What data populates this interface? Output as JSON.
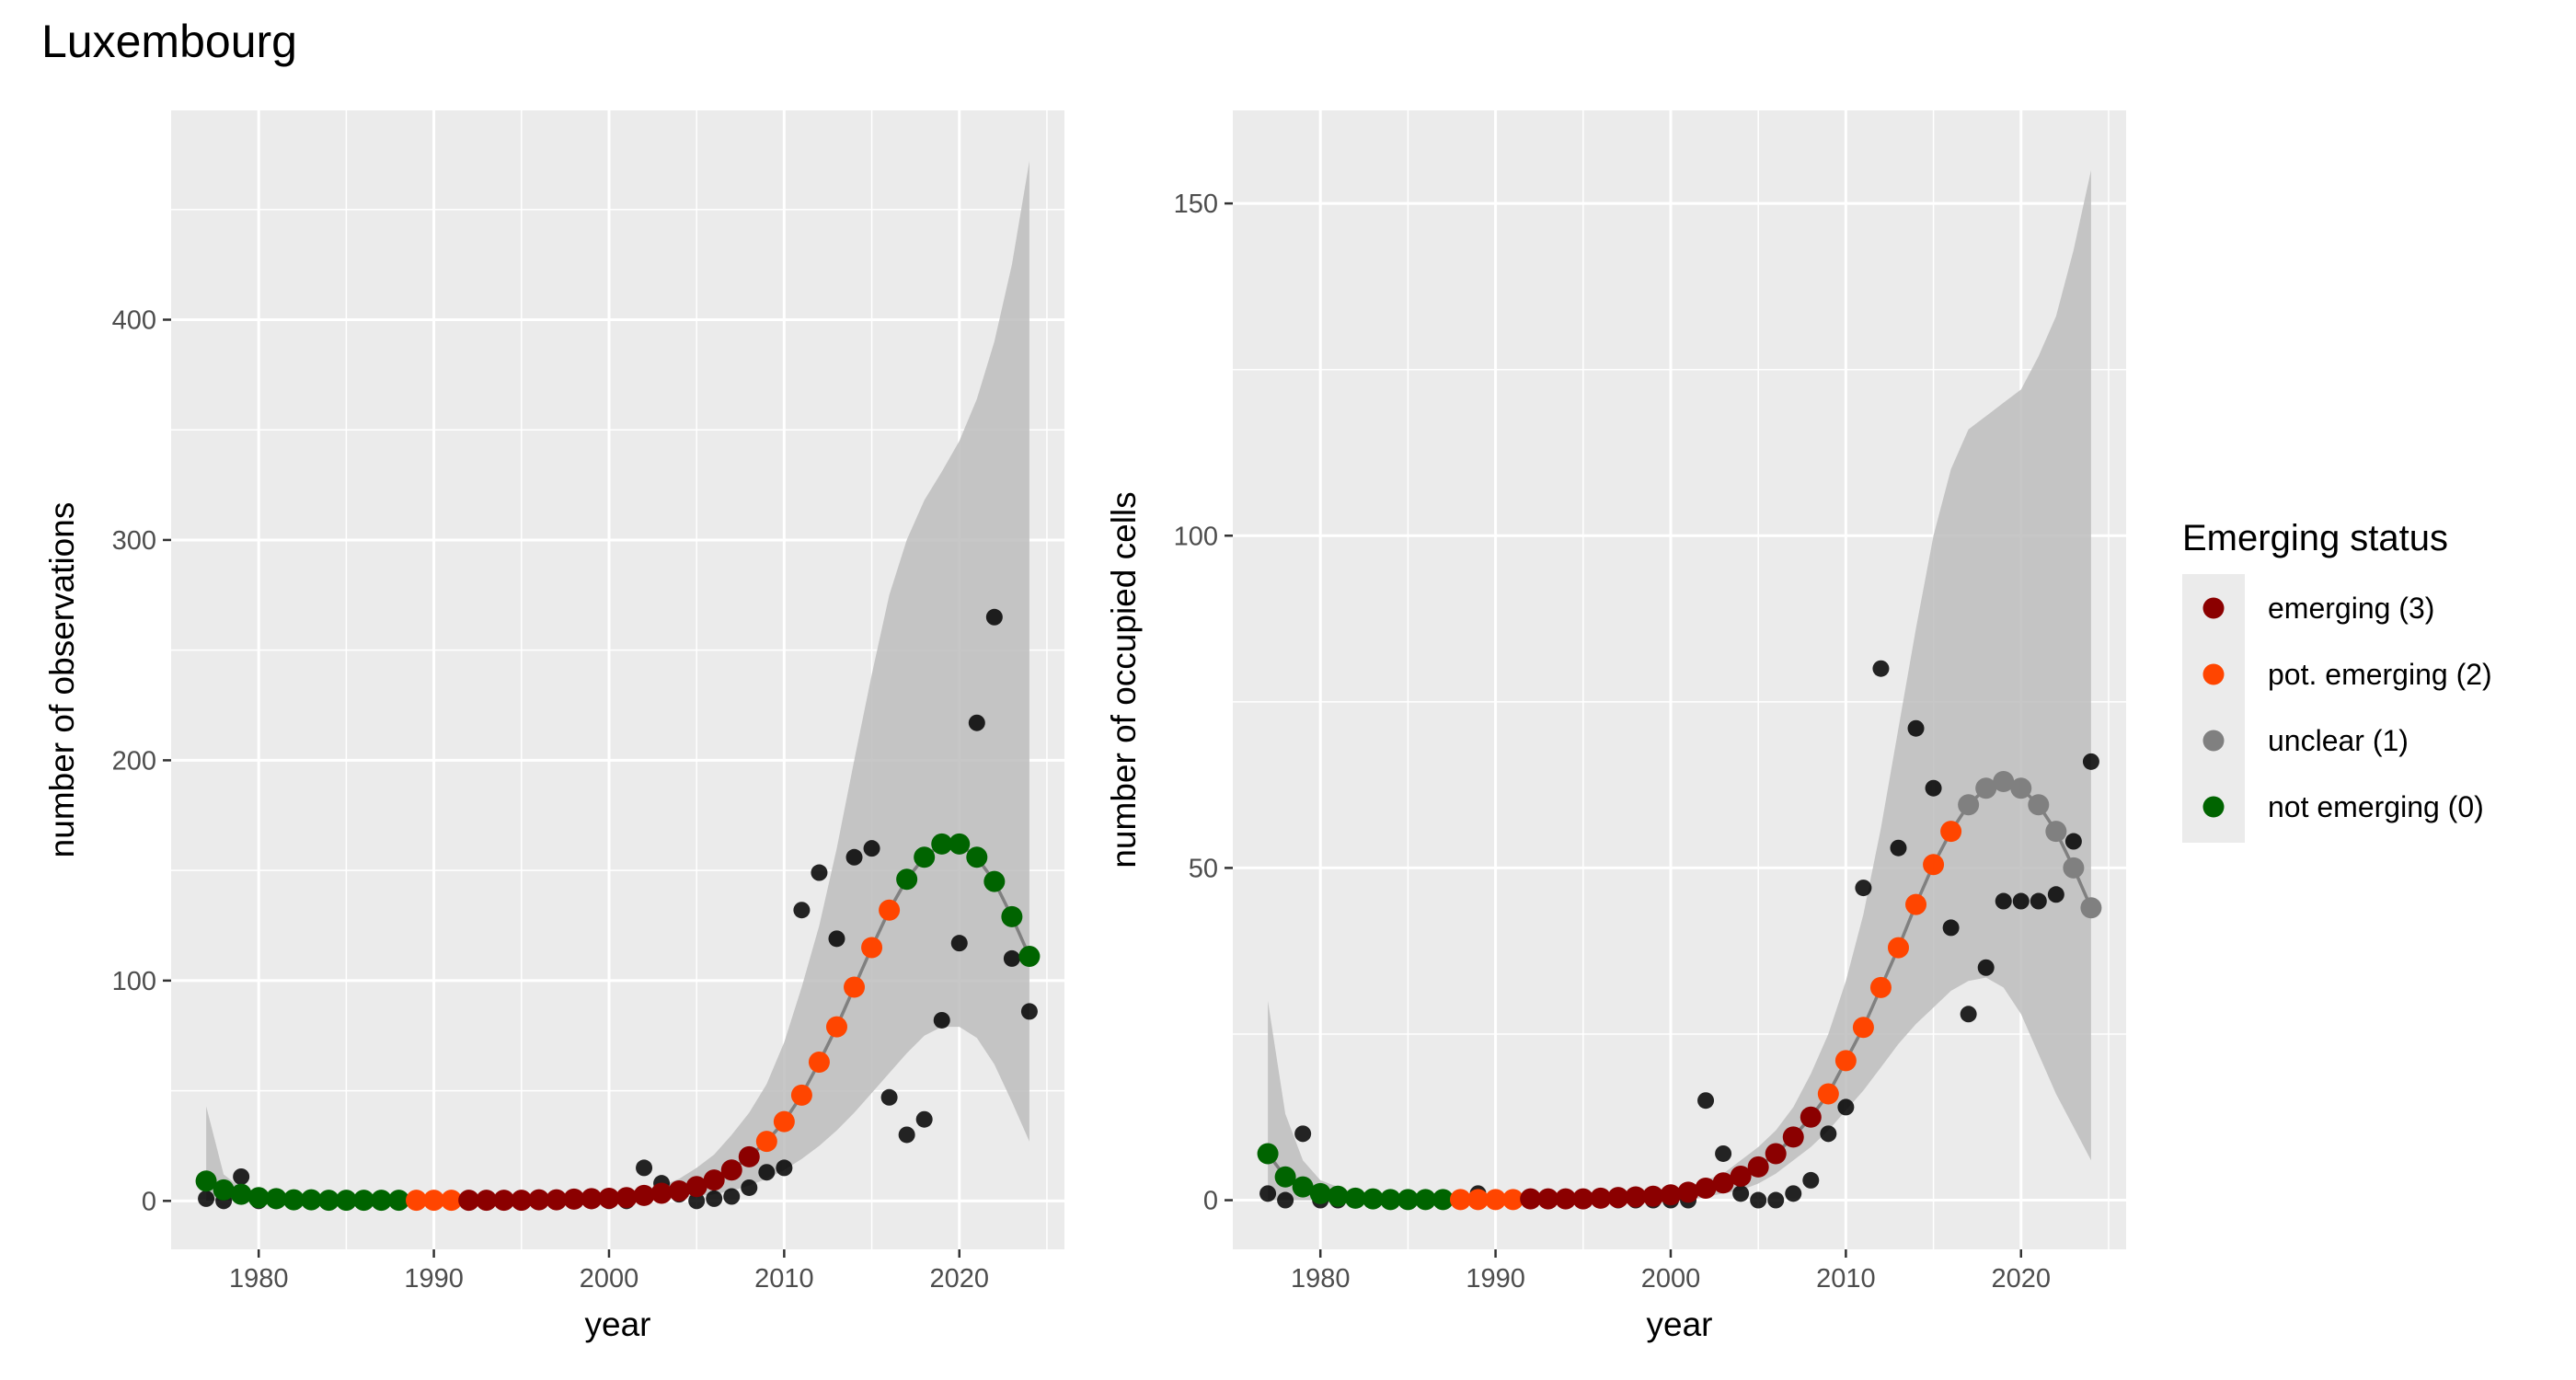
{
  "title": "Luxembourg",
  "legend": {
    "title": "Emerging status",
    "position": "right",
    "entries": [
      {
        "key": "3",
        "label": "emerging (3)",
        "color": "#8B0000"
      },
      {
        "key": "2",
        "label": "pot. emerging (2)",
        "color": "#FF4500"
      },
      {
        "key": "1",
        "label": "unclear (1)",
        "color": "#808080"
      },
      {
        "key": "0",
        "label": "not emerging (0)",
        "color": "#006400"
      }
    ]
  },
  "chart_data": [
    {
      "type": "scatter",
      "xlabel": "year",
      "ylabel": "number of observations",
      "xlim": [
        1975,
        2026
      ],
      "ylim": [
        -22,
        495
      ],
      "xticks": [
        1980,
        1990,
        2000,
        2010,
        2020
      ],
      "yticks": [
        0,
        100,
        200,
        300,
        400
      ],
      "grid": true,
      "observed": {
        "x": [
          1977,
          1978,
          1979,
          1980,
          1981,
          1982,
          1983,
          1984,
          1985,
          1986,
          1987,
          1988,
          1989,
          1990,
          1991,
          1992,
          1993,
          1994,
          1995,
          1996,
          1997,
          1998,
          1999,
          2000,
          2001,
          2002,
          2003,
          2004,
          2005,
          2006,
          2007,
          2008,
          2009,
          2010,
          2011,
          2012,
          2013,
          2014,
          2015,
          2016,
          2017,
          2018,
          2019,
          2020,
          2021,
          2022,
          2023,
          2024
        ],
        "y": [
          1,
          0,
          11,
          0,
          0,
          0,
          0,
          0,
          0,
          0,
          0,
          0,
          0,
          0,
          0,
          0,
          0,
          0,
          0,
          0,
          0,
          0,
          0,
          0,
          0,
          15,
          8,
          3,
          0,
          1,
          2,
          6,
          13,
          15,
          132,
          149,
          119,
          156,
          160,
          47,
          30,
          37,
          82,
          117,
          217,
          265,
          110,
          86
        ]
      },
      "fit": {
        "x": [
          1977,
          1978,
          1979,
          1980,
          1981,
          1982,
          1983,
          1984,
          1985,
          1986,
          1987,
          1988,
          1989,
          1990,
          1991,
          1992,
          1993,
          1994,
          1995,
          1996,
          1997,
          1998,
          1999,
          2000,
          2001,
          2002,
          2003,
          2004,
          2005,
          2006,
          2007,
          2008,
          2009,
          2010,
          2011,
          2012,
          2013,
          2014,
          2015,
          2016,
          2017,
          2018,
          2019,
          2020,
          2021,
          2022,
          2023,
          2024
        ],
        "y": [
          9,
          5,
          3,
          1.5,
          1,
          0.5,
          0.5,
          0.3,
          0.3,
          0.3,
          0.3,
          0.3,
          0.3,
          0.3,
          0.3,
          0.3,
          0.3,
          0.3,
          0.3,
          0.5,
          0.5,
          0.8,
          1,
          1.2,
          1.5,
          2.5,
          3.5,
          4.5,
          6.5,
          9.5,
          14,
          20,
          27,
          36,
          48,
          63,
          79,
          97,
          115,
          132,
          146,
          156,
          162,
          162,
          156,
          145,
          129,
          111
        ],
        "status": [
          "0",
          "0",
          "0",
          "0",
          "0",
          "0",
          "0",
          "0",
          "0",
          "0",
          "0",
          "0",
          "2",
          "2",
          "2",
          "3",
          "3",
          "3",
          "3",
          "3",
          "3",
          "3",
          "3",
          "3",
          "3",
          "3",
          "3",
          "3",
          "3",
          "3",
          "3",
          "3",
          "2",
          "2",
          "2",
          "2",
          "2",
          "2",
          "2",
          "2",
          "0",
          "0",
          "0",
          "0",
          "0",
          "0",
          "0",
          "0"
        ],
        "lower": [
          0,
          0,
          0,
          0,
          0,
          0,
          0,
          0,
          0,
          0,
          0,
          0,
          0,
          0,
          0,
          0,
          0,
          0,
          0,
          0,
          0,
          0,
          0,
          0,
          0,
          0.5,
          1,
          1.5,
          2,
          3,
          4.5,
          7,
          10,
          14,
          19,
          25,
          32,
          40,
          49,
          58,
          67,
          75,
          79,
          79,
          74,
          62,
          45,
          27
        ],
        "upper": [
          43,
          12,
          6,
          3,
          2,
          1,
          1,
          1,
          1,
          1,
          1,
          1,
          1,
          1,
          1,
          1,
          1,
          1,
          1,
          1,
          1,
          1.5,
          2,
          2.5,
          3,
          5,
          7,
          10,
          15,
          21,
          30,
          40,
          53,
          72,
          97,
          125,
          160,
          200,
          239,
          275,
          300,
          318,
          331,
          345,
          364,
          390,
          425,
          472
        ]
      }
    },
    {
      "type": "scatter",
      "xlabel": "year",
      "ylabel": "number of occupied cells",
      "xlim": [
        1975,
        2026
      ],
      "ylim": [
        -7.4,
        164
      ],
      "xticks": [
        1980,
        1990,
        2000,
        2010,
        2020
      ],
      "yticks": [
        0,
        50,
        100,
        150
      ],
      "grid": true,
      "observed": {
        "x": [
          1977,
          1978,
          1979,
          1980,
          1981,
          1982,
          1983,
          1984,
          1985,
          1986,
          1987,
          1988,
          1989,
          1990,
          1991,
          1992,
          1993,
          1994,
          1995,
          1996,
          1997,
          1998,
          1999,
          2000,
          2001,
          2002,
          2003,
          2004,
          2005,
          2006,
          2007,
          2008,
          2009,
          2010,
          2011,
          2012,
          2013,
          2014,
          2015,
          2016,
          2017,
          2018,
          2019,
          2020,
          2021,
          2022,
          2023,
          2024
        ],
        "y": [
          1,
          0,
          10,
          0,
          0,
          0,
          0,
          0,
          0,
          0,
          0,
          0,
          1,
          0,
          0,
          0,
          0,
          0,
          0,
          0,
          0,
          0,
          0,
          0,
          0,
          15,
          7,
          1,
          0,
          0,
          1,
          3,
          10,
          14,
          47,
          80,
          53,
          71,
          62,
          41,
          28,
          35,
          45,
          45,
          45,
          46,
          54,
          66
        ]
      },
      "fit": {
        "x": [
          1977,
          1978,
          1979,
          1980,
          1981,
          1982,
          1983,
          1984,
          1985,
          1986,
          1987,
          1988,
          1989,
          1990,
          1991,
          1992,
          1993,
          1994,
          1995,
          1996,
          1997,
          1998,
          1999,
          2000,
          2001,
          2002,
          2003,
          2004,
          2005,
          2006,
          2007,
          2008,
          2009,
          2010,
          2011,
          2012,
          2013,
          2014,
          2015,
          2016,
          2017,
          2018,
          2019,
          2020,
          2021,
          2022,
          2023,
          2024
        ],
        "y": [
          7,
          3.5,
          2,
          1,
          0.6,
          0.3,
          0.2,
          0.1,
          0.1,
          0.1,
          0.1,
          0.1,
          0.1,
          0.1,
          0.1,
          0.2,
          0.2,
          0.2,
          0.2,
          0.3,
          0.4,
          0.5,
          0.6,
          0.8,
          1.2,
          1.8,
          2.6,
          3.6,
          5,
          7,
          9.5,
          12.5,
          16,
          21,
          26,
          32,
          38,
          44.5,
          50.5,
          55.5,
          59.5,
          62,
          63,
          62,
          59.5,
          55.5,
          50,
          44
        ],
        "status": [
          "0",
          "0",
          "0",
          "0",
          "0",
          "0",
          "0",
          "0",
          "0",
          "0",
          "0",
          "2",
          "2",
          "2",
          "2",
          "3",
          "3",
          "3",
          "3",
          "3",
          "3",
          "3",
          "3",
          "3",
          "3",
          "3",
          "3",
          "3",
          "3",
          "3",
          "3",
          "3",
          "2",
          "2",
          "2",
          "2",
          "2",
          "2",
          "2",
          "2",
          "1",
          "1",
          "1",
          "1",
          "1",
          "1",
          "1",
          "1"
        ],
        "lower": [
          0,
          0,
          0,
          0,
          0,
          0,
          0,
          0,
          0,
          0,
          0,
          0,
          0,
          0,
          0,
          0,
          0,
          0,
          0,
          0,
          0,
          0,
          0,
          0,
          0,
          0.5,
          1,
          1.5,
          2.5,
          4,
          6,
          8,
          10.5,
          13.5,
          16.5,
          20,
          23.5,
          26.5,
          29,
          31.5,
          33,
          33.5,
          32,
          28,
          22,
          16,
          11,
          6
        ],
        "upper": [
          30,
          13,
          6,
          3,
          2,
          1,
          1,
          1,
          1,
          1,
          1,
          1,
          1,
          1,
          1,
          1,
          1,
          1,
          1,
          1,
          1,
          1,
          1,
          1.5,
          2,
          3,
          4,
          6,
          8,
          10.5,
          14,
          19,
          25,
          33,
          43,
          56,
          71,
          86,
          100,
          110,
          116,
          118,
          120,
          122,
          127,
          133,
          143,
          155
        ]
      }
    }
  ]
}
